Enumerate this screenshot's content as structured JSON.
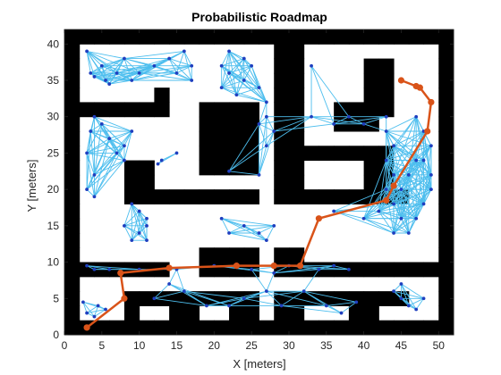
{
  "chart_data": {
    "type": "scatter",
    "title": "Probabilistic Roadmap",
    "xlabel": "X [meters]",
    "ylabel": "Y [meters]",
    "xlim": [
      0,
      52
    ],
    "ylim": [
      0,
      42
    ],
    "xticks": [
      "0",
      "5",
      "10",
      "15",
      "20",
      "25",
      "30",
      "35",
      "40",
      "45",
      "50"
    ],
    "yticks": [
      "0",
      "5",
      "10",
      "15",
      "20",
      "25",
      "30",
      "35",
      "40"
    ],
    "map_grid": {
      "cell_size_m": 2,
      "cols": 26,
      "rows": 21,
      "rows_top_to_bottom": [
        "11111111111111111111111111",
        "10000000000000110000000001",
        "10000000000000110000110001",
        "10000000000000110000110001",
        "10000010000000110000110001",
        "11111110011110110011110001",
        "10000000011110110011100001",
        "10000000011110110000000001",
        "10000000011110111111110001",
        "10001100011110110000110001",
        "10001100000000110000110001",
        "10001111111110111111111001",
        "10000000000000000000000001",
        "10000000000000000000000001",
        "10000000000000000000000001",
        "10000000011110110000000001",
        "11111110011110111111111111",
        "10000000000000000000000001",
        "10001111111110111111111001",
        "10001001100110110001100001",
        "11111111111111111111111111"
      ]
    },
    "nodes": [
      {
        "name": "top-left room",
        "color": "#1f3fbf",
        "points": [
          [
            3,
            39
          ],
          [
            3.5,
            36
          ],
          [
            4,
            35.5
          ],
          [
            5,
            37
          ],
          [
            5.5,
            35
          ],
          [
            6,
            34.5
          ],
          [
            7,
            36
          ],
          [
            8,
            38
          ],
          [
            9,
            35
          ],
          [
            10,
            36
          ],
          [
            12,
            37
          ],
          [
            14,
            38
          ],
          [
            15,
            36
          ],
          [
            16,
            39
          ],
          [
            17,
            37
          ],
          [
            17,
            35
          ]
        ]
      },
      {
        "name": "left column",
        "color": "#1f3fbf",
        "points": [
          [
            4,
            30
          ],
          [
            3.5,
            28
          ],
          [
            3,
            25
          ],
          [
            4,
            22
          ],
          [
            3,
            20
          ],
          [
            4,
            19
          ],
          [
            5,
            29
          ],
          [
            6,
            27
          ],
          [
            7,
            25
          ],
          [
            8,
            26
          ],
          [
            9,
            28
          ],
          [
            8,
            24
          ]
        ]
      },
      {
        "name": "left block",
        "color": "#1f3fbf",
        "points": [
          [
            9,
            18
          ],
          [
            10,
            17
          ],
          [
            11,
            16
          ],
          [
            10,
            14
          ],
          [
            11,
            13
          ],
          [
            9,
            13
          ],
          [
            8,
            15
          ],
          [
            11,
            15
          ]
        ]
      },
      {
        "name": "small center-left",
        "color": "#1f3fbf",
        "points": [
          [
            12.5,
            23.5
          ],
          [
            13,
            24
          ],
          [
            15,
            25
          ]
        ]
      },
      {
        "name": "top center room",
        "color": "#1f3fbf",
        "points": [
          [
            21,
            37
          ],
          [
            22,
            36
          ],
          [
            21,
            34
          ],
          [
            23,
            33
          ],
          [
            24,
            35
          ],
          [
            25,
            37
          ],
          [
            24,
            38
          ],
          [
            26,
            34
          ],
          [
            27,
            32
          ],
          [
            22,
            39
          ]
        ]
      },
      {
        "name": "center corridor",
        "color": "#1f3fbf",
        "points": [
          [
            22,
            22.5
          ],
          [
            26,
            22
          ],
          [
            27,
            26
          ],
          [
            26,
            29
          ],
          [
            27,
            30
          ],
          [
            28,
            28
          ],
          [
            33,
            37
          ],
          [
            33,
            30
          ],
          [
            36,
            29
          ],
          [
            38,
            30
          ],
          [
            40,
            29
          ],
          [
            43,
            30
          ]
        ]
      },
      {
        "name": "right room",
        "color": "#1f3fbf",
        "points": [
          [
            43,
            28
          ],
          [
            44,
            26
          ],
          [
            43,
            24
          ],
          [
            44,
            22
          ],
          [
            43,
            20
          ],
          [
            44,
            18
          ],
          [
            45,
            16
          ],
          [
            44,
            14
          ],
          [
            46,
            14
          ],
          [
            47,
            16
          ],
          [
            48,
            18
          ],
          [
            49,
            20
          ],
          [
            49,
            22
          ],
          [
            48,
            24
          ],
          [
            49,
            26
          ],
          [
            48,
            28
          ],
          [
            47,
            30
          ],
          [
            46,
            22
          ],
          [
            45,
            20
          ],
          [
            47,
            24
          ],
          [
            42,
            17
          ],
          [
            40,
            16
          ],
          [
            36,
            17
          ]
        ]
      },
      {
        "name": "center low room",
        "color": "#1f3fbf",
        "points": [
          [
            21,
            16
          ],
          [
            22,
            14
          ],
          [
            24,
            15
          ],
          [
            26,
            14
          ],
          [
            27,
            13
          ],
          [
            28,
            15
          ]
        ]
      },
      {
        "name": "corridor row",
        "color": "#1f3fbf",
        "points": [
          [
            3,
            9.5
          ],
          [
            4,
            9
          ],
          [
            6,
            9
          ],
          [
            10,
            9
          ],
          [
            15,
            9
          ],
          [
            20,
            9.5
          ],
          [
            25,
            9
          ],
          [
            28,
            8.5
          ],
          [
            30,
            9.5
          ],
          [
            34,
            9
          ],
          [
            36,
            9.5
          ],
          [
            38,
            9
          ]
        ]
      },
      {
        "name": "lower left room",
        "color": "#1f3fbf",
        "points": [
          [
            2.5,
            4.5
          ],
          [
            3,
            3
          ],
          [
            4,
            2.5
          ],
          [
            4.5,
            4
          ],
          [
            5.5,
            3.5
          ]
        ]
      },
      {
        "name": "lower center",
        "color": "#1f3fbf",
        "points": [
          [
            12,
            5
          ],
          [
            14,
            7
          ],
          [
            16,
            6
          ],
          [
            19,
            4
          ],
          [
            22,
            4
          ],
          [
            24,
            5
          ],
          [
            27,
            6
          ],
          [
            29,
            4
          ],
          [
            32,
            6
          ],
          [
            35,
            4
          ],
          [
            37,
            3
          ],
          [
            39,
            4.5
          ]
        ]
      },
      {
        "name": "lower right room",
        "color": "#1f3fbf",
        "points": [
          [
            44,
            6
          ],
          [
            45,
            5
          ],
          [
            46,
            4
          ],
          [
            47,
            3.5
          ],
          [
            48,
            5
          ],
          [
            45,
            7
          ]
        ]
      }
    ],
    "edge_color": "#4dbeee",
    "path": {
      "color": "#d95319",
      "points": [
        [
          3,
          1
        ],
        [
          8,
          5
        ],
        [
          7.5,
          8.5
        ],
        [
          14,
          9.2
        ],
        [
          23,
          9.5
        ],
        [
          28,
          9.5
        ],
        [
          31.5,
          9.5
        ],
        [
          34,
          16
        ],
        [
          43,
          18.5
        ],
        [
          44,
          20.5
        ],
        [
          48.5,
          28
        ],
        [
          49,
          32
        ],
        [
          47.5,
          34
        ],
        [
          47,
          34.2
        ],
        [
          45,
          35
        ]
      ]
    }
  }
}
